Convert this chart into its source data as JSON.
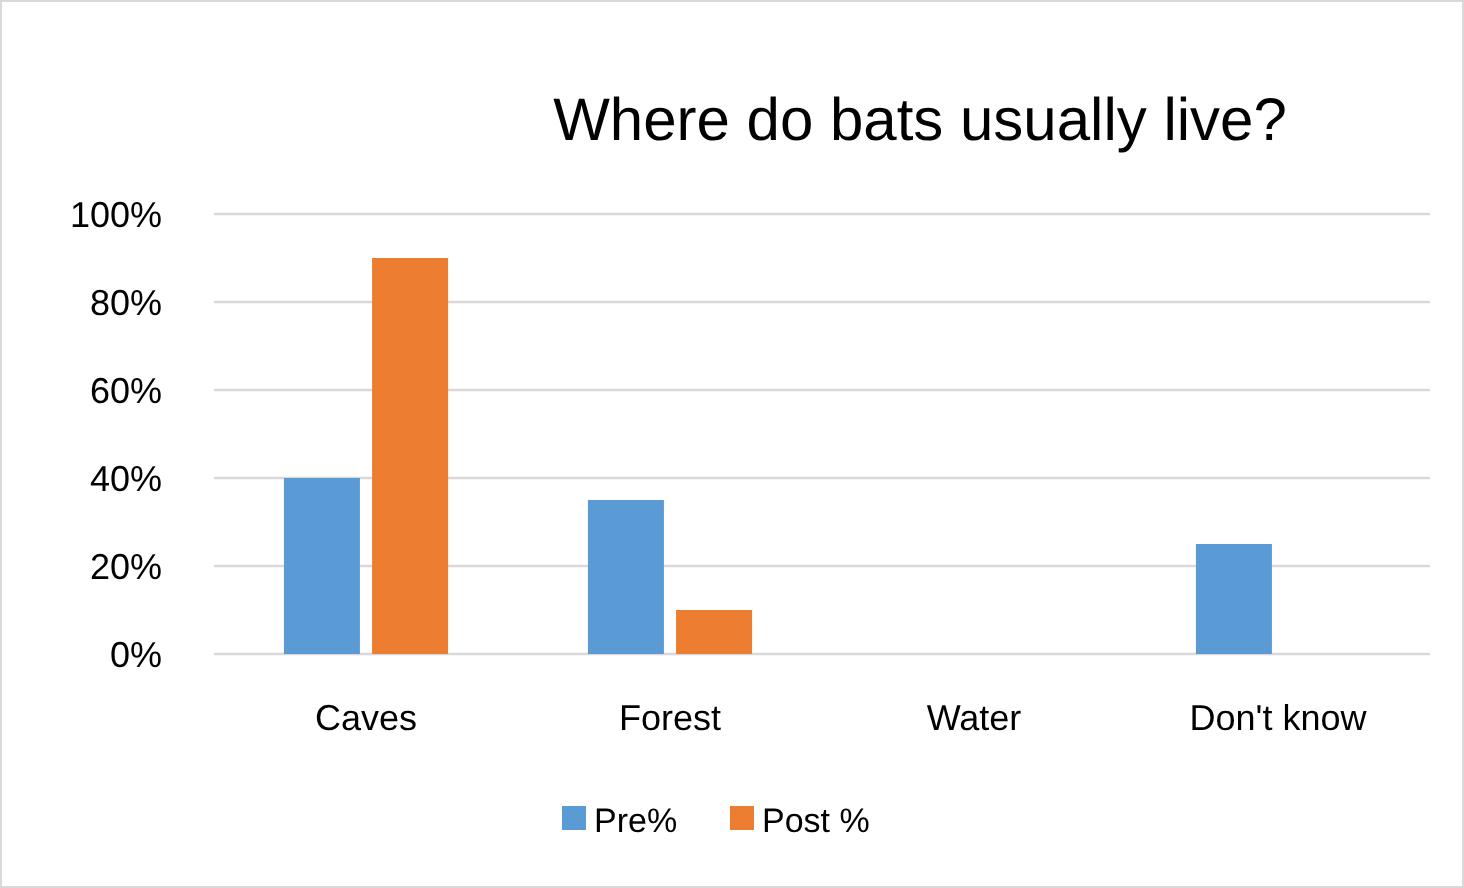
{
  "chart_data": {
    "type": "bar",
    "title": "Where do bats usually live?",
    "categories": [
      "Caves",
      "Forest",
      "Water",
      "Don't know"
    ],
    "series": [
      {
        "name": "Pre%",
        "color": "#5b9bd5",
        "values": [
          40,
          35,
          0,
          25
        ]
      },
      {
        "name": "Post %",
        "color": "#ed7d31",
        "values": [
          90,
          10,
          0,
          0
        ]
      }
    ],
    "ylim": [
      0,
      100
    ],
    "yticks": [
      {
        "value": 0,
        "label": "0%"
      },
      {
        "value": 20,
        "label": "20%"
      },
      {
        "value": 40,
        "label": "40%"
      },
      {
        "value": 60,
        "label": "60%"
      },
      {
        "value": 80,
        "label": "80%"
      },
      {
        "value": 100,
        "label": "100%"
      }
    ],
    "grid": "y",
    "legend": "bottom"
  }
}
